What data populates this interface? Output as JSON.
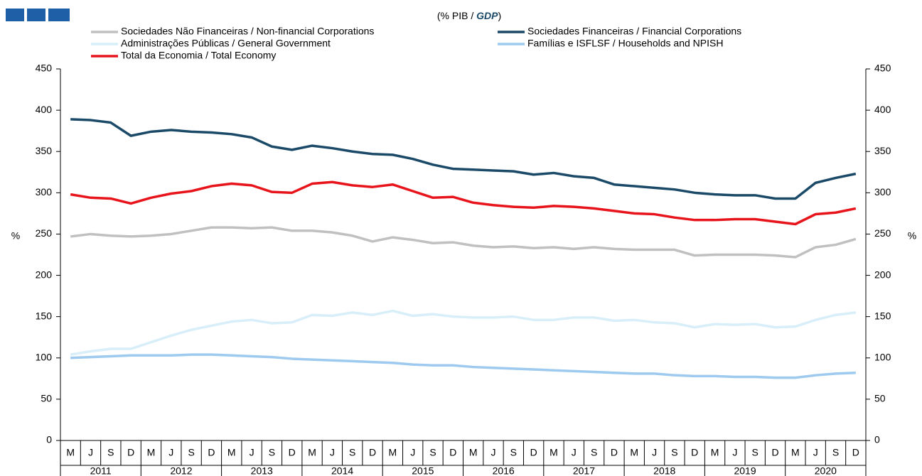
{
  "chart_data": {
    "type": "line",
    "subtitle_parts": [
      "(% PIB / ",
      "GDP",
      ")"
    ],
    "ylabel": "%",
    "y2label": "%",
    "categories": [
      "M",
      "J",
      "S",
      "D",
      "M",
      "J",
      "S",
      "D",
      "M",
      "J",
      "S",
      "D",
      "M",
      "J",
      "S",
      "D",
      "M",
      "J",
      "S",
      "D",
      "M",
      "J",
      "S",
      "D",
      "M",
      "J",
      "S",
      "D",
      "M",
      "J",
      "S",
      "D",
      "M",
      "J",
      "S",
      "D",
      "M",
      "J",
      "S",
      "D"
    ],
    "years": [
      "2011",
      "2012",
      "2013",
      "2014",
      "2015",
      "2016",
      "2017",
      "2018",
      "2019",
      "2020"
    ],
    "ylim": [
      0,
      450
    ],
    "yticks": [
      0,
      50,
      100,
      150,
      200,
      250,
      300,
      350,
      400,
      450
    ],
    "y2lim": [
      0,
      450
    ],
    "y2ticks": [
      0,
      50,
      100,
      150,
      200,
      250,
      300,
      350,
      400,
      450
    ],
    "series": [
      {
        "name": "Sociedades Não Financeiras / Non-financial Corporations",
        "color": "#c0c0c0",
        "values": [
          247,
          250,
          248,
          247,
          248,
          250,
          254,
          258,
          258,
          257,
          258,
          254,
          254,
          252,
          248,
          241,
          246,
          243,
          239,
          240,
          236,
          234,
          235,
          233,
          234,
          232,
          234,
          232,
          231,
          231,
          231,
          224,
          225,
          225,
          225,
          224,
          222,
          234,
          237,
          244
        ]
      },
      {
        "name": "Sociedades Financeiras / Financial Corporations",
        "color": "#1b4a68",
        "values": [
          389,
          388,
          385,
          369,
          374,
          376,
          374,
          373,
          371,
          367,
          356,
          352,
          357,
          354,
          350,
          347,
          346,
          341,
          334,
          329,
          328,
          327,
          326,
          322,
          324,
          320,
          318,
          310,
          308,
          306,
          304,
          300,
          298,
          297,
          297,
          293,
          293,
          312,
          318,
          323
        ]
      },
      {
        "name": "Administrações Públicas / General Government",
        "color": "#d8eef9",
        "values": [
          104,
          108,
          111,
          111,
          119,
          127,
          134,
          139,
          144,
          146,
          142,
          143,
          152,
          151,
          155,
          152,
          157,
          151,
          153,
          150,
          149,
          149,
          150,
          146,
          146,
          149,
          149,
          145,
          146,
          143,
          142,
          137,
          141,
          140,
          141,
          137,
          138,
          146,
          152,
          155
        ]
      },
      {
        "name": "Famílias e ISFLSF / Households and NPISH",
        "color": "#9dcaee",
        "values": [
          100,
          101,
          102,
          103,
          103,
          103,
          104,
          104,
          103,
          102,
          101,
          99,
          98,
          97,
          96,
          95,
          94,
          92,
          91,
          91,
          89,
          88,
          87,
          86,
          85,
          84,
          83,
          82,
          81,
          81,
          79,
          78,
          78,
          77,
          77,
          76,
          76,
          79,
          81,
          82
        ]
      },
      {
        "name": "Total da Economia / Total Economy",
        "color": "#e8141b",
        "values": [
          298,
          294,
          293,
          287,
          294,
          299,
          302,
          308,
          311,
          309,
          301,
          300,
          311,
          313,
          309,
          307,
          310,
          302,
          294,
          295,
          288,
          285,
          283,
          282,
          284,
          283,
          281,
          278,
          275,
          274,
          270,
          267,
          267,
          268,
          268,
          265,
          262,
          274,
          276,
          281
        ]
      }
    ]
  }
}
